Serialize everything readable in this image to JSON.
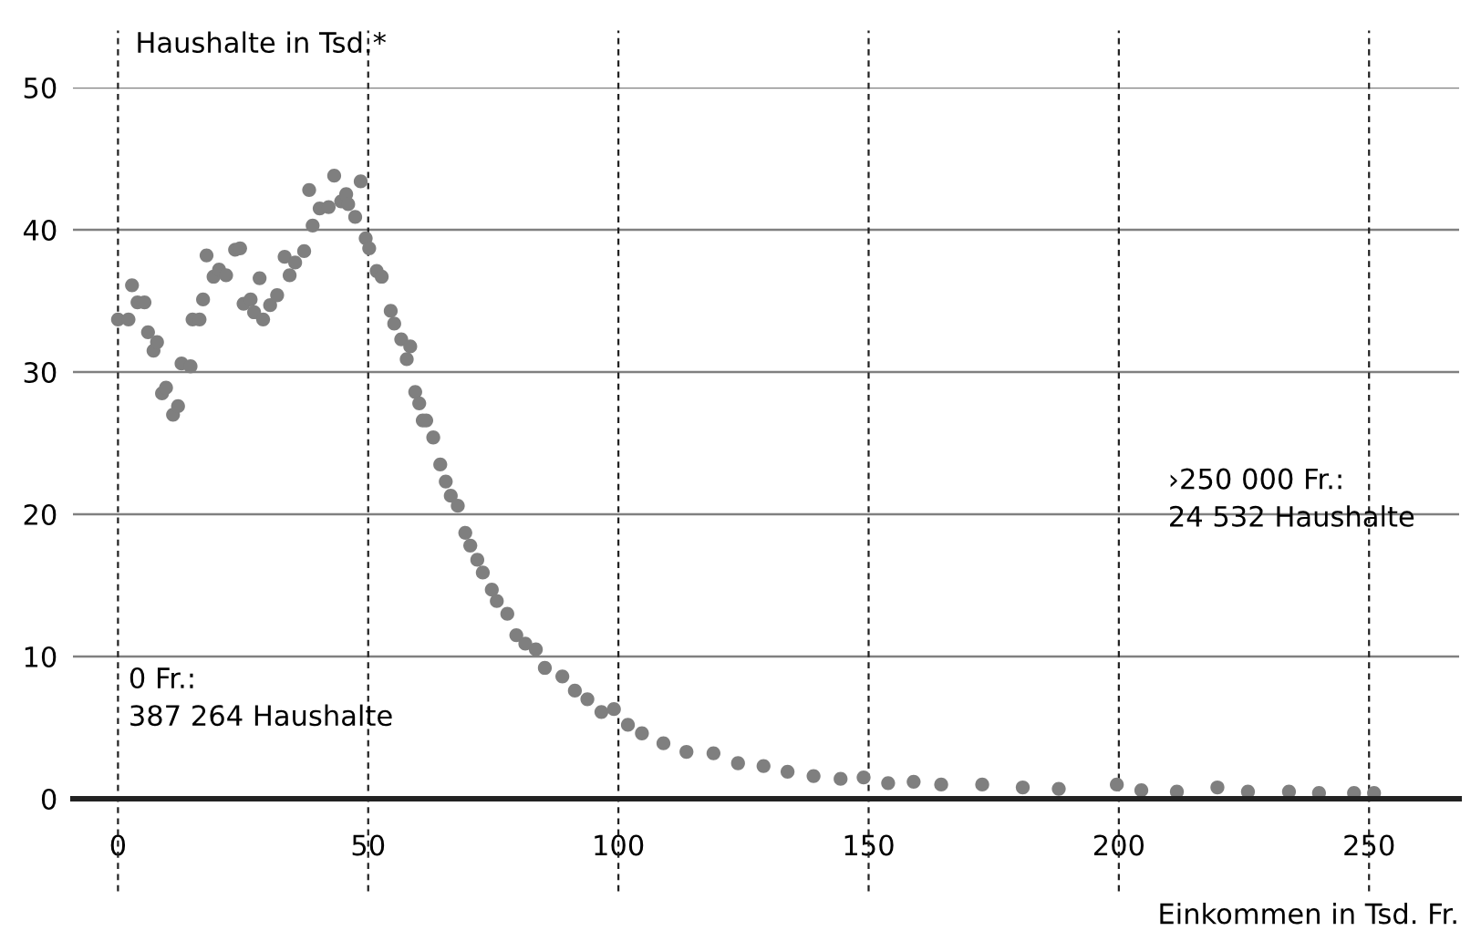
{
  "chart_data": {
    "type": "scatter",
    "ylabel": "Haushalte in Tsd.*",
    "xlabel": "Einkommen in Tsd. Fr.",
    "x": [
      0,
      2.1,
      2.8,
      3.9,
      5.3,
      6,
      7.1,
      7.8,
      8.8,
      9.6,
      11,
      12,
      12.7,
      14.5,
      14.9,
      16.3,
      17,
      17.7,
      19.1,
      20.2,
      21.6,
      23.4,
      24.4,
      25.1,
      26.5,
      27.2,
      28.3,
      29,
      30.4,
      31.8,
      33.3,
      34.3,
      35.4,
      37.2,
      38.2,
      38.9,
      40.3,
      42.1,
      43.2,
      44.6,
      45.6,
      46,
      47.4,
      48.5,
      49.5,
      50.2,
      51.7,
      52.7,
      54.5,
      55.2,
      56.6,
      57.7,
      58.4,
      59.4,
      60.2,
      60.9,
      61.6,
      63,
      64.4,
      65.5,
      66.5,
      67.9,
      69.4,
      70.4,
      71.8,
      72.9,
      74.7,
      75.7,
      77.8,
      79.6,
      81.4,
      83.5,
      85.3,
      88.8,
      91.3,
      93.8,
      96.6,
      99.1,
      101.9,
      104.7,
      109,
      113.6,
      119,
      123.9,
      129,
      133.8,
      139,
      144.4,
      149,
      153.9,
      159,
      164.5,
      172.7,
      180.8,
      188,
      199.6,
      204.5,
      211.6,
      219.7,
      225.8,
      234,
      240,
      247,
      251
    ],
    "series": [
      {
        "color": "#7f7f7f",
        "values": [
          33.7,
          33.7,
          36.1,
          34.9,
          34.9,
          32.8,
          31.5,
          32.1,
          28.5,
          28.9,
          27.0,
          27.6,
          30.6,
          30.4,
          33.7,
          33.7,
          35.1,
          38.2,
          36.7,
          37.2,
          36.8,
          38.6,
          38.7,
          34.8,
          35.1,
          34.2,
          36.6,
          33.7,
          34.7,
          35.4,
          38.1,
          36.8,
          37.7,
          38.5,
          42.8,
          40.3,
          41.5,
          41.6,
          43.8,
          42.0,
          42.5,
          41.8,
          40.9,
          43.4,
          39.4,
          38.7,
          37.1,
          36.7,
          34.3,
          33.4,
          32.3,
          30.9,
          31.8,
          28.6,
          27.8,
          26.6,
          26.6,
          25.4,
          23.5,
          22.3,
          21.3,
          20.6,
          18.7,
          17.8,
          16.8,
          15.9,
          14.7,
          13.9,
          13.0,
          11.5,
          10.9,
          10.5,
          9.2,
          8.6,
          7.6,
          7.0,
          6.1,
          6.3,
          5.2,
          4.6,
          3.9,
          3.3,
          3.2,
          2.5,
          2.3,
          1.9,
          1.6,
          1.4,
          1.5,
          1.1,
          1.2,
          1.0,
          1.0,
          0.8,
          0.7,
          1.0,
          0.6,
          0.5,
          0.8,
          0.5,
          0.5,
          0.4,
          0.4,
          0.4
        ]
      }
    ],
    "xlim": [
      -9,
      268
    ],
    "xticks": [
      0,
      50,
      100,
      150,
      200,
      250
    ],
    "ylim": [
      0,
      50
    ],
    "yticks": [
      0,
      10,
      20,
      30,
      40,
      50
    ],
    "grid": true,
    "marker": "circle",
    "annotations": [
      "0 Fr.:\n387 264 Haushalte",
      "›250 000 Fr.:\n24 532 Haushalte"
    ]
  }
}
